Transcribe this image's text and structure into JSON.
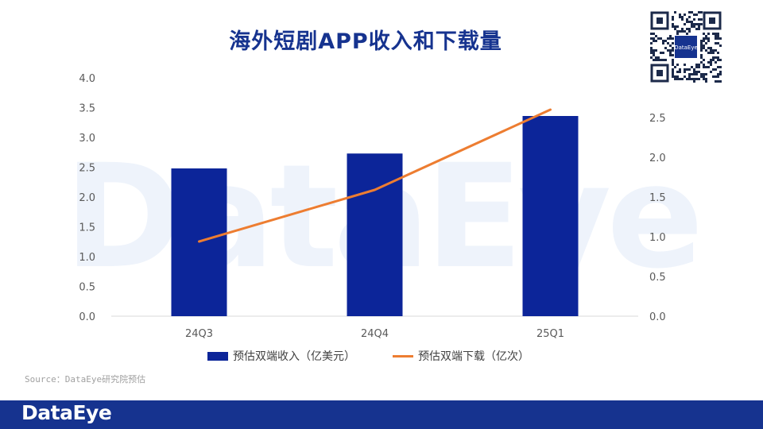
{
  "title": "海外短剧APP收入和下载量",
  "watermark": "DataEye",
  "qr_center_label": "DataEye",
  "source": "Source：DataEye研究院预估",
  "footer_logo": "DataEye",
  "colors": {
    "bar": "#0c2599",
    "line": "#ed7d31",
    "brand": "#16338f",
    "axis_text": "#595959",
    "axis_line": "#d9d9d9",
    "watermark": "#eef3fb"
  },
  "chart_data": {
    "type": "bar",
    "categories": [
      "24Q3",
      "24Q4",
      "25Q1"
    ],
    "series": [
      {
        "name": "预估双端收入（亿美元）",
        "type": "bar",
        "axis": "left",
        "values": [
          2.48,
          2.73,
          3.36
        ]
      },
      {
        "name": "预估双端下载（亿次）",
        "type": "line",
        "axis": "right",
        "values": [
          0.94,
          1.59,
          2.6
        ]
      }
    ],
    "y_left": {
      "min": 0,
      "max": 4.0,
      "ticks": [
        "0.0",
        "0.5",
        "1.0",
        "1.5",
        "2.0",
        "2.5",
        "3.0",
        "3.5",
        "4.0"
      ]
    },
    "y_right": {
      "min": 0,
      "max": 3.0,
      "ticks": [
        "0.0",
        "0.5",
        "1.0",
        "1.5",
        "2.0",
        "2.5"
      ]
    },
    "grid": false,
    "legend_position": "bottom"
  }
}
